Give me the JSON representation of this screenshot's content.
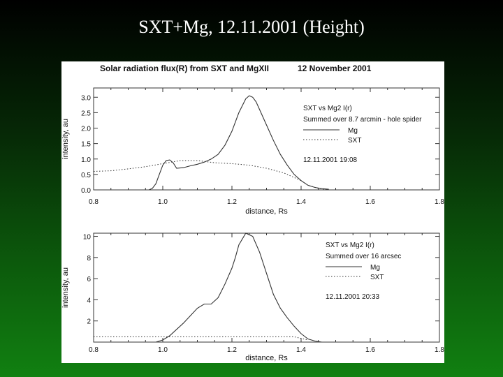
{
  "slide_title": "SXT+Mg, 12.11.2001 (Height)",
  "colors": {
    "background_top": "#000000",
    "background_bottom": "#118011",
    "panel": "#ffffff",
    "title_text": "#ffffff",
    "plot_ink": "#333333"
  },
  "chart_data": [
    {
      "type": "line",
      "title": "Solar radiation flux(R) from SXT and MgXII",
      "date": "12 November 2001",
      "xlabel": "distance, Rs",
      "ylabel": "intensity, au",
      "xlim": [
        0.8,
        1.8
      ],
      "ylim": [
        0,
        3.3
      ],
      "xticks": [
        "0.8",
        "1.0",
        "1.2",
        "1.4",
        "1.6",
        "1.8"
      ],
      "yticks": [
        "0.0",
        "0.5",
        "1.0",
        "1.5",
        "2.0",
        "2.5",
        "3.0"
      ],
      "grid": false,
      "legend": {
        "position": "top-right",
        "lines": [
          "SXT vs Mg2 I(r)",
          "Summed over 8.7 arcmin - hole spider"
        ],
        "date_note": "12.11.2001 19:08"
      },
      "series": [
        {
          "name": "Mg",
          "style": "solid",
          "x": [
            0.96,
            0.97,
            0.98,
            0.99,
            1.0,
            1.01,
            1.02,
            1.03,
            1.04,
            1.06,
            1.08,
            1.1,
            1.12,
            1.14,
            1.16,
            1.18,
            1.2,
            1.22,
            1.24,
            1.25,
            1.26,
            1.27,
            1.28,
            1.3,
            1.32,
            1.34,
            1.36,
            1.38,
            1.4,
            1.42,
            1.44,
            1.46,
            1.48
          ],
          "y": [
            0.0,
            0.05,
            0.2,
            0.5,
            0.8,
            0.95,
            0.97,
            0.88,
            0.7,
            0.72,
            0.78,
            0.83,
            0.9,
            1.0,
            1.15,
            1.45,
            1.9,
            2.5,
            2.95,
            3.05,
            3.0,
            2.85,
            2.6,
            2.1,
            1.6,
            1.15,
            0.8,
            0.5,
            0.3,
            0.15,
            0.08,
            0.04,
            0.02
          ]
        },
        {
          "name": "SXT",
          "style": "dotted",
          "x": [
            0.8,
            0.85,
            0.9,
            0.95,
            1.0,
            1.05,
            1.1,
            1.15,
            1.2,
            1.25,
            1.3,
            1.35,
            1.4,
            1.42,
            1.45,
            1.48
          ],
          "y": [
            0.6,
            0.62,
            0.68,
            0.75,
            0.85,
            0.95,
            0.95,
            0.88,
            0.85,
            0.8,
            0.7,
            0.55,
            0.3,
            0.15,
            0.05,
            0.0
          ]
        }
      ]
    },
    {
      "type": "line",
      "xlabel": "distance, Rs",
      "ylabel": "intensity, au",
      "xlim": [
        0.8,
        1.8
      ],
      "ylim": [
        0,
        10.3
      ],
      "xticks": [
        "0.8",
        "1.0",
        "1.2",
        "1.4",
        "1.6",
        "1.8"
      ],
      "yticks": [
        "2",
        "4",
        "6",
        "8",
        "10"
      ],
      "grid": false,
      "legend": {
        "position": "top-right",
        "lines": [
          "SXT vs Mg2 I(r)",
          "Summed over 16 arcsec"
        ],
        "date_note": "12.11.2001 20:33"
      },
      "series": [
        {
          "name": "Mg",
          "style": "solid",
          "x": [
            0.98,
            1.0,
            1.02,
            1.04,
            1.06,
            1.08,
            1.1,
            1.12,
            1.14,
            1.16,
            1.18,
            1.2,
            1.21,
            1.22,
            1.24,
            1.26,
            1.28,
            1.3,
            1.32,
            1.34,
            1.36,
            1.38,
            1.4,
            1.42,
            1.44,
            1.46
          ],
          "y": [
            0.0,
            0.2,
            0.6,
            1.2,
            1.8,
            2.5,
            3.2,
            3.6,
            3.6,
            4.2,
            5.5,
            7.0,
            8.0,
            9.2,
            10.3,
            10.0,
            8.5,
            6.5,
            4.5,
            3.2,
            2.3,
            1.5,
            0.8,
            0.3,
            0.1,
            0.0
          ]
        },
        {
          "name": "SXT",
          "style": "dotted",
          "x": [
            0.8,
            0.9,
            1.0,
            1.1,
            1.2,
            1.3,
            1.38,
            1.42
          ],
          "y": [
            0.5,
            0.5,
            0.5,
            0.5,
            0.5,
            0.5,
            0.5,
            0.2
          ]
        }
      ]
    }
  ]
}
